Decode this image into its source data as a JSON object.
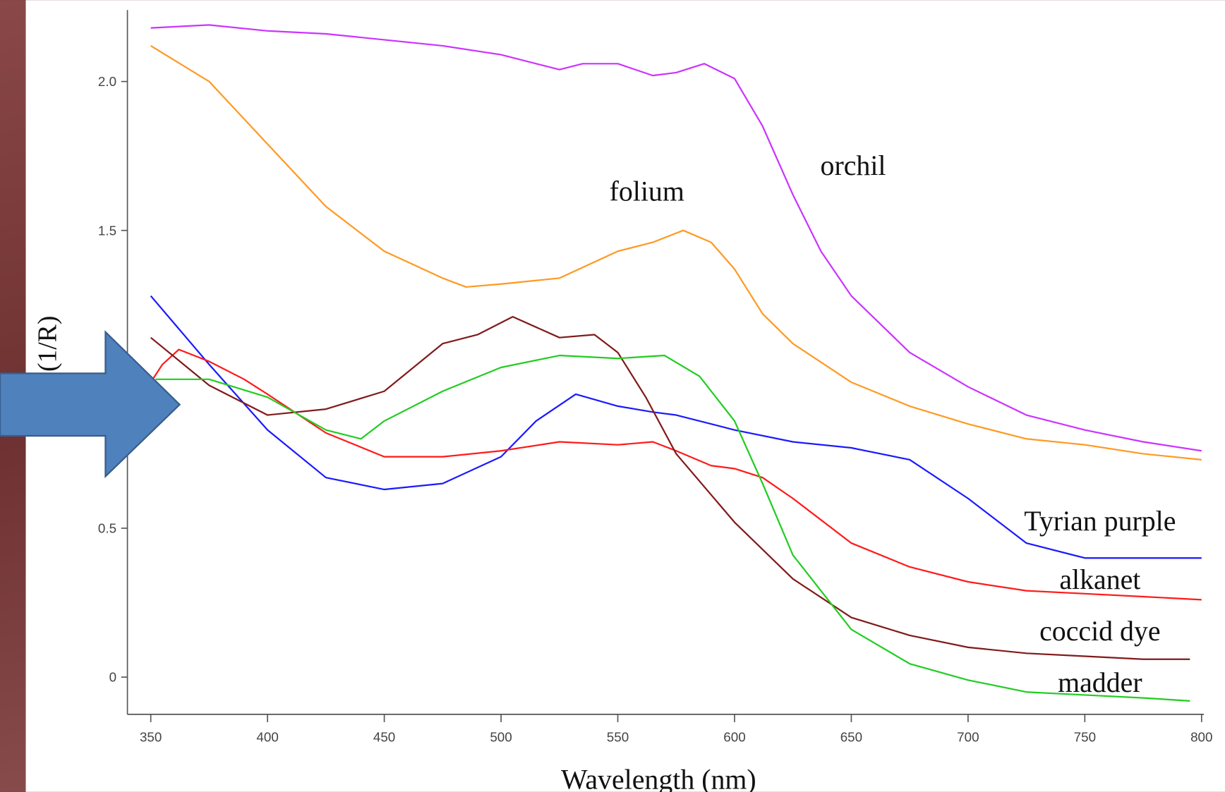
{
  "chart_data": {
    "type": "line",
    "x_label": "Wavelength (nm)",
    "y_label": "(1/R)",
    "xlim": [
      340,
      801
    ],
    "ylim": [
      -0.125,
      2.24
    ],
    "xticks": [
      350,
      400,
      450,
      500,
      550,
      600,
      650,
      700,
      750,
      800
    ],
    "yticks": [
      0,
      0.5,
      1.5,
      {
        "value": 2,
        "label": "2.0"
      }
    ],
    "series": [
      {
        "name": "orchil",
        "color": "#cc33ff",
        "x": [
          350,
          375,
          400,
          425,
          450,
          475,
          500,
          525,
          535,
          550,
          565,
          575,
          587,
          600,
          612,
          625,
          637,
          650,
          675,
          700,
          725,
          750,
          775,
          800
        ],
        "values": [
          2.18,
          2.19,
          2.17,
          2.16,
          2.14,
          2.12,
          2.09,
          2.04,
          2.06,
          2.06,
          2.02,
          2.03,
          2.06,
          2.01,
          1.85,
          1.62,
          1.43,
          1.28,
          1.09,
          0.975,
          0.88,
          0.83,
          0.79,
          0.76
        ]
      },
      {
        "name": "folium",
        "color": "#ff9922",
        "x": [
          350,
          375,
          400,
          425,
          450,
          475,
          485,
          500,
          525,
          550,
          565,
          578,
          590,
          600,
          612,
          625,
          650,
          675,
          700,
          725,
          750,
          775,
          800
        ],
        "values": [
          2.12,
          2.0,
          1.79,
          1.58,
          1.43,
          1.34,
          1.31,
          1.32,
          1.34,
          1.43,
          1.46,
          1.5,
          1.46,
          1.37,
          1.22,
          1.12,
          0.99,
          0.91,
          0.85,
          0.8,
          0.78,
          0.75,
          0.73
        ]
      },
      {
        "name": "Tyrian purple",
        "color": "#1a1aff",
        "x": [
          350,
          375,
          400,
          425,
          450,
          475,
          500,
          515,
          532,
          550,
          565,
          575,
          600,
          625,
          650,
          675,
          700,
          725,
          750,
          775,
          800
        ],
        "values": [
          1.28,
          1.05,
          0.83,
          0.67,
          0.63,
          0.65,
          0.74,
          0.86,
          0.95,
          0.91,
          0.89,
          0.88,
          0.83,
          0.79,
          0.77,
          0.73,
          0.6,
          0.45,
          0.4,
          0.4,
          0.4
        ]
      },
      {
        "name": "alkanet",
        "color": "#ff1a1a",
        "x": [
          350,
          355,
          362,
          375,
          390,
          400,
          425,
          450,
          475,
          500,
          525,
          550,
          565,
          575,
          590,
          600,
          612,
          625,
          650,
          675,
          700,
          725,
          750,
          775,
          800
        ],
        "values": [
          0.99,
          1.05,
          1.1,
          1.06,
          1.0,
          0.95,
          0.82,
          0.74,
          0.74,
          0.76,
          0.79,
          0.78,
          0.79,
          0.76,
          0.71,
          0.7,
          0.67,
          0.6,
          0.45,
          0.37,
          0.32,
          0.29,
          0.28,
          0.27,
          0.26
        ]
      },
      {
        "name": "coccid dye",
        "color": "#801a1a",
        "x": [
          350,
          375,
          400,
          425,
          450,
          475,
          490,
          505,
          525,
          540,
          550,
          562,
          575,
          600,
          625,
          650,
          675,
          700,
          725,
          750,
          775,
          795
        ],
        "values": [
          1.14,
          0.98,
          0.88,
          0.9,
          0.96,
          1.12,
          1.15,
          1.21,
          1.14,
          1.15,
          1.09,
          0.94,
          0.75,
          0.52,
          0.33,
          0.2,
          0.14,
          0.1,
          0.08,
          0.07,
          0.06,
          0.06
        ]
      },
      {
        "name": "madder",
        "color": "#22cc22",
        "x": [
          352,
          375,
          400,
          425,
          440,
          450,
          475,
          500,
          525,
          550,
          570,
          585,
          600,
          612,
          625,
          650,
          675,
          700,
          725,
          750,
          775,
          795
        ],
        "values": [
          1.0,
          1.0,
          0.94,
          0.83,
          0.8,
          0.86,
          0.96,
          1.04,
          1.08,
          1.07,
          1.08,
          1.01,
          0.86,
          0.65,
          0.41,
          0.16,
          0.045,
          -0.01,
          -0.05,
          -0.06,
          -0.07,
          -0.08
        ]
      }
    ]
  }
}
